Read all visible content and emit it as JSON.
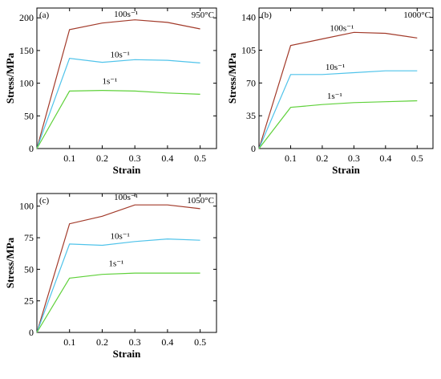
{
  "chart_data": [
    {
      "type": "line",
      "panel": "(a)",
      "temperature": "950°C",
      "xlabel": "Strain",
      "ylabel": "Stress/MPa",
      "xlim": [
        0,
        0.55
      ],
      "ylim": [
        0,
        215
      ],
      "xticks": [
        0.1,
        0.2,
        0.3,
        0.4,
        0.5
      ],
      "yticks": [
        0,
        50,
        100,
        150,
        200
      ],
      "x": [
        0,
        0.1,
        0.2,
        0.3,
        0.4,
        0.5
      ],
      "series": [
        {
          "name": "100s⁻¹",
          "color": "#a23a2a",
          "values": [
            0,
            182,
            192,
            197,
            193,
            183
          ]
        },
        {
          "name": "10s⁻¹",
          "color": "#4fc3ea",
          "values": [
            0,
            138,
            132,
            136,
            135,
            131
          ]
        },
        {
          "name": "1s⁻¹",
          "color": "#5fd13a",
          "values": [
            0,
            88,
            89,
            88,
            85,
            83
          ]
        }
      ]
    },
    {
      "type": "line",
      "panel": "(b)",
      "temperature": "1000°C",
      "xlabel": "Strain",
      "ylabel": "Stress/MPa",
      "xlim": [
        0,
        0.55
      ],
      "ylim": [
        0,
        150
      ],
      "xticks": [
        0.1,
        0.2,
        0.3,
        0.4,
        0.5
      ],
      "yticks": [
        0,
        35,
        70,
        105,
        140
      ],
      "x": [
        0,
        0.1,
        0.2,
        0.3,
        0.4,
        0.5
      ],
      "series": [
        {
          "name": "100s⁻¹",
          "color": "#a23a2a",
          "values": [
            0,
            110,
            117,
            124,
            123,
            118
          ]
        },
        {
          "name": "10s⁻¹",
          "color": "#4fc3ea",
          "values": [
            0,
            79,
            79,
            81,
            83,
            83
          ]
        },
        {
          "name": "1s⁻¹",
          "color": "#5fd13a",
          "values": [
            0,
            44,
            47,
            49,
            50,
            51
          ]
        }
      ]
    },
    {
      "type": "line",
      "panel": "(c)",
      "temperature": "1050°C",
      "xlabel": "Strain",
      "ylabel": "Stress/MPa",
      "xlim": [
        0,
        0.55
      ],
      "ylim": [
        0,
        110
      ],
      "xticks": [
        0.1,
        0.2,
        0.3,
        0.4,
        0.5
      ],
      "yticks": [
        0,
        25,
        50,
        75,
        100
      ],
      "x": [
        0,
        0.1,
        0.2,
        0.3,
        0.4,
        0.5
      ],
      "series": [
        {
          "name": "100s⁻¹",
          "color": "#a23a2a",
          "values": [
            0,
            86,
            92,
            101,
            101,
            98
          ]
        },
        {
          "name": "10s⁻¹",
          "color": "#4fc3ea",
          "values": [
            0,
            70,
            69,
            72,
            74,
            73
          ]
        },
        {
          "name": "1s⁻¹",
          "color": "#5fd13a",
          "values": [
            0,
            43,
            46,
            47,
            47,
            47
          ]
        }
      ]
    }
  ]
}
